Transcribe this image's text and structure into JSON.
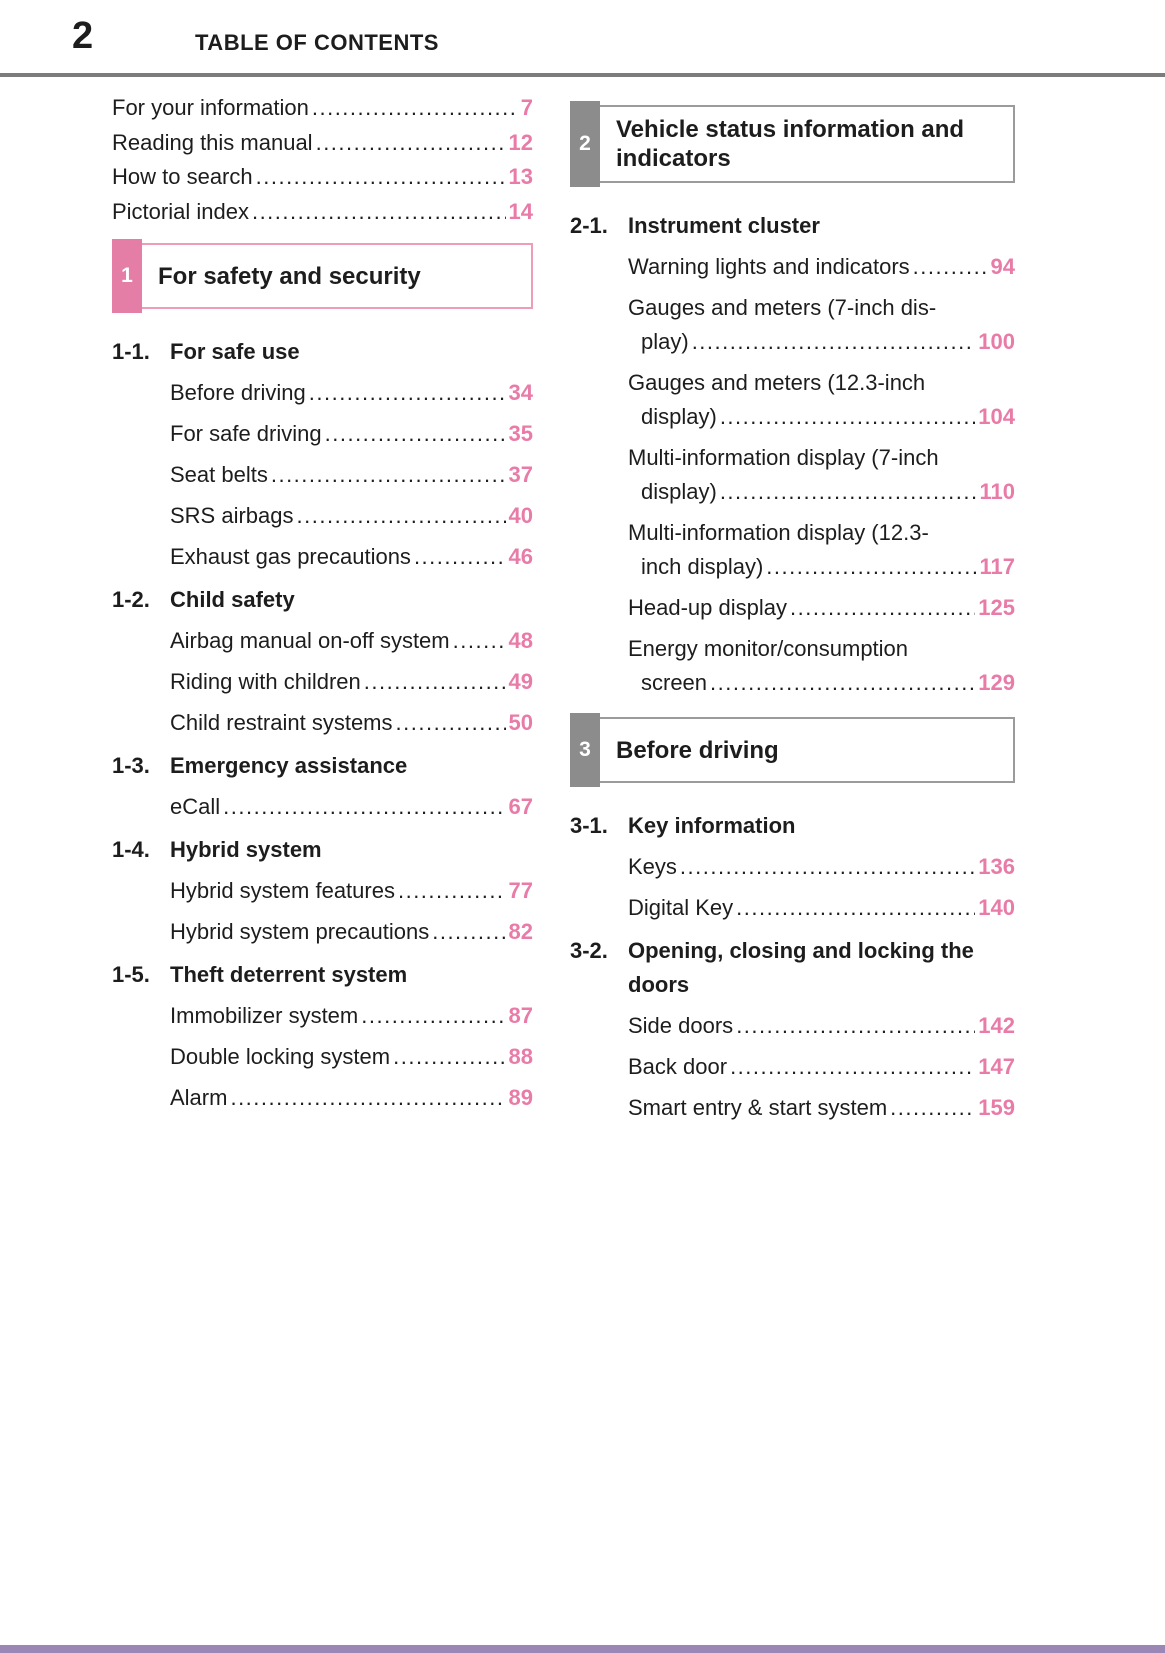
{
  "page": {
    "number": "2",
    "title": "TABLE OF CONTENTS"
  },
  "colors": {
    "accent_pink_number": "#e87ba7",
    "tab_pink": "#e57ea7",
    "tab_gray": "#8c8c8c",
    "border_pink": "#ee9cba",
    "border_gray": "#9b9b9b",
    "header_rule_gray": "#7c7c7c",
    "footer_bar_purple": "#9b87b5"
  },
  "front_matter": [
    {
      "label": "For your information",
      "page": "7"
    },
    {
      "label": "Reading this manual",
      "page": "12"
    },
    {
      "label": "How to search",
      "page": "13"
    },
    {
      "label": "Pictorial index",
      "page": "14"
    }
  ],
  "sections": [
    {
      "num": "1",
      "title": "For safety and security",
      "style": "pink",
      "column": "left",
      "subsections": [
        {
          "id": "1-1.",
          "title": "For safe use",
          "entries": [
            {
              "lines": [
                "Before driving"
              ],
              "page": "34"
            },
            {
              "lines": [
                "For safe driving"
              ],
              "page": "35"
            },
            {
              "lines": [
                "Seat belts"
              ],
              "page": "37"
            },
            {
              "lines": [
                "SRS airbags"
              ],
              "page": "40"
            },
            {
              "lines": [
                "Exhaust gas precautions"
              ],
              "page": "46"
            }
          ]
        },
        {
          "id": "1-2.",
          "title": "Child safety",
          "entries": [
            {
              "lines": [
                "Airbag manual on-off system"
              ],
              "page": "48"
            },
            {
              "lines": [
                "Riding with children"
              ],
              "page": "49"
            },
            {
              "lines": [
                "Child restraint systems"
              ],
              "page": "50"
            }
          ]
        },
        {
          "id": "1-3.",
          "title": "Emergency assistance",
          "entries": [
            {
              "lines": [
                "eCall"
              ],
              "page": "67"
            }
          ]
        },
        {
          "id": "1-4.",
          "title": "Hybrid system",
          "entries": [
            {
              "lines": [
                "Hybrid system features"
              ],
              "page": "77"
            },
            {
              "lines": [
                "Hybrid system precautions"
              ],
              "page": "82"
            }
          ]
        },
        {
          "id": "1-5.",
          "title": "Theft deterrent system",
          "entries": [
            {
              "lines": [
                "Immobilizer system"
              ],
              "page": "87"
            },
            {
              "lines": [
                "Double locking system"
              ],
              "page": "88"
            },
            {
              "lines": [
                "Alarm"
              ],
              "page": "89"
            }
          ]
        }
      ]
    },
    {
      "num": "2",
      "title": "Vehicle status information and indicators",
      "style": "gray",
      "column": "right",
      "subsections": [
        {
          "id": "2-1.",
          "title": "Instrument cluster",
          "entries": [
            {
              "lines": [
                "Warning lights and indicators"
              ],
              "page": "94"
            },
            {
              "lines": [
                "Gauges and meters (7-inch dis-",
                "play)"
              ],
              "page": "100"
            },
            {
              "lines": [
                "Gauges and meters (12.3-inch",
                "display)"
              ],
              "page": "104"
            },
            {
              "lines": [
                "Multi-information display (7-inch",
                "display)"
              ],
              "page": "110"
            },
            {
              "lines": [
                "Multi-information display (12.3-",
                "inch display)"
              ],
              "page": "117"
            },
            {
              "lines": [
                "Head-up display"
              ],
              "page": "125"
            },
            {
              "lines": [
                "Energy monitor/consumption",
                "screen"
              ],
              "page": "129"
            }
          ]
        }
      ]
    },
    {
      "num": "3",
      "title": "Before driving",
      "style": "gray",
      "column": "right",
      "subsections": [
        {
          "id": "3-1.",
          "title": "Key information",
          "entries": [
            {
              "lines": [
                "Keys"
              ],
              "page": "136"
            },
            {
              "lines": [
                "Digital Key"
              ],
              "page": "140"
            }
          ]
        },
        {
          "id": "3-2.",
          "title": "Opening, closing and locking the doors",
          "entries": [
            {
              "lines": [
                "Side doors"
              ],
              "page": "142"
            },
            {
              "lines": [
                "Back door"
              ],
              "page": "147"
            },
            {
              "lines": [
                "Smart entry & start system"
              ],
              "page": "159"
            }
          ]
        }
      ]
    }
  ]
}
